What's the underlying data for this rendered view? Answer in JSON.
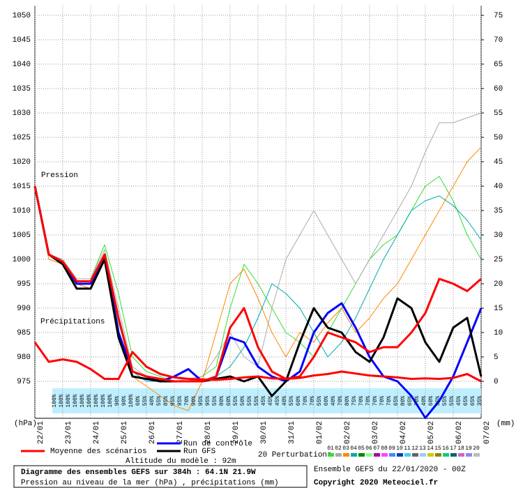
{
  "chart_data": {
    "type": "line",
    "title": "Diagramme des ensembles GEFS sur 384h : 64.1N 21.9W",
    "subtitle": "Pression au niveau de la mer (hPa) , précipitations (mm)",
    "run_info": "Ensemble GEFS du 22/01/2020 - 00Z",
    "copyright": "Copyright 2020 Meteociel.fr",
    "altitude": "Altitude du modèle : 92m",
    "pressure_label": "Pression",
    "precip_label": "Précipitations",
    "y_unit": "(hPa)",
    "y2_unit": "(mm)",
    "grid": true,
    "categories": [
      "22/01",
      null,
      "23/01",
      null,
      "24/01",
      null,
      "25/01",
      null,
      "26/01",
      null,
      "27/01",
      null,
      "28/01",
      null,
      "29/01",
      null,
      "30/01",
      null,
      "31/01",
      null,
      "01/02",
      null,
      "02/02",
      null,
      "03/02",
      null,
      "04/02",
      null,
      "05/02",
      null,
      "06/02",
      null,
      "07/02"
    ],
    "ylim": [
      967.5,
      1050
    ],
    "yticks": [
      975,
      980,
      985,
      990,
      995,
      1000,
      1005,
      1010,
      1015,
      1020,
      1025,
      1030,
      1035,
      1040,
      1045,
      1050
    ],
    "y2lim": [
      -7.5,
      75
    ],
    "y2ticks": [
      0,
      5,
      10,
      15,
      20,
      25,
      30,
      35,
      40,
      45,
      50,
      55,
      60,
      65,
      70,
      75
    ],
    "series": [
      {
        "name": "Moyenne des scénarios",
        "color": "#ff0000",
        "values": [
          1015,
          1001,
          999.5,
          995.5,
          995.5,
          1001,
          988,
          977,
          976,
          975.5,
          975,
          975,
          975,
          976,
          986,
          990,
          982,
          977,
          975.5,
          976,
          980,
          985,
          984,
          983,
          981,
          982,
          982,
          985,
          989,
          996,
          995,
          993.5,
          996
        ]
      },
      {
        "name": "Run de contrôle",
        "color": "#0000ff",
        "values": [
          1015,
          1001,
          999.5,
          995,
          995,
          1001,
          985,
          977,
          976,
          975,
          976,
          977.5,
          975,
          976,
          984,
          983,
          978,
          976,
          975,
          977,
          985,
          989,
          991,
          986,
          980,
          976,
          975,
          972,
          967.5,
          971,
          976,
          983,
          990
        ]
      },
      {
        "name": "Run GFS",
        "color": "#000000",
        "values": [
          1015,
          1001,
          999,
          994,
          994,
          1000,
          984,
          976,
          975.5,
          975,
          975,
          975,
          975,
          975.5,
          976,
          975,
          976,
          972,
          975,
          983,
          990,
          986,
          985,
          981,
          979,
          984,
          992,
          990,
          983,
          979,
          986,
          988,
          976
        ]
      },
      {
        "color": "#ff0000",
        "axis": "y2",
        "values": [
          8,
          4,
          4.5,
          4,
          2.5,
          0.5,
          0.5,
          6,
          3,
          1.5,
          0.8,
          0.5,
          0.4,
          0.3,
          0.5,
          0.8,
          1,
          0.6,
          0.5,
          0.7,
          1.2,
          1.5,
          2,
          1.6,
          1.2,
          1,
          0.8,
          0.5,
          0.6,
          0.5,
          0.7,
          1.5,
          0
        ]
      }
    ],
    "perturbations": [
      {
        "color": "#33dd33",
        "values": [
          1015,
          1001,
          1000,
          996,
          996,
          1003,
          993,
          980,
          977,
          976,
          975,
          975,
          976,
          978,
          990,
          999,
          995,
          990,
          985,
          983,
          980,
          985,
          990,
          995,
          1000,
          1003,
          1005,
          1010,
          1015,
          1017,
          1012,
          1005,
          1000
        ]
      },
      {
        "color": "#aaaaaa",
        "values": [
          1015,
          1001,
          1000,
          996,
          996,
          1002,
          990,
          978,
          976,
          975,
          975,
          975.5,
          976,
          980,
          985,
          980,
          978,
          990,
          1000,
          1005,
          1010,
          1005,
          1000,
          995,
          1000,
          1005,
          1010,
          1015,
          1022,
          1028,
          1028,
          1029,
          1030
        ]
      },
      {
        "color": "#ff8800",
        "values": [
          1015,
          1000,
          999,
          995,
          994,
          1000,
          985,
          976,
          974,
          972,
          970,
          969,
          975,
          985,
          995,
          998,
          992,
          985,
          980,
          985,
          983,
          987,
          990,
          985,
          988,
          992,
          995,
          1000,
          1005,
          1010,
          1015,
          1020,
          1023
        ]
      },
      {
        "color": "#00aaaa",
        "values": [
          1015,
          1001,
          999,
          995,
          995,
          1001,
          987,
          977,
          975,
          975,
          975,
          975,
          975,
          976,
          978,
          982,
          988,
          995,
          993,
          990,
          985,
          980,
          983,
          988,
          994,
          1000,
          1005,
          1010,
          1012,
          1013,
          1011,
          1008,
          1004
        ]
      }
    ],
    "perturbation_legend": {
      "title": "20 Perturbations",
      "items": [
        {
          "label": "01",
          "color": "#33dd33"
        },
        {
          "label": "02",
          "color": "#aaaaaa"
        },
        {
          "label": "03",
          "color": "#ff8800"
        },
        {
          "label": "04",
          "color": "#00aaaa"
        },
        {
          "label": "05",
          "color": "#008800"
        },
        {
          "label": "06",
          "color": "#88ff88"
        },
        {
          "label": "07",
          "color": "#aa00aa"
        },
        {
          "label": "08",
          "color": "#ff44ff"
        },
        {
          "label": "09",
          "color": "#4488ff"
        },
        {
          "label": "10",
          "color": "#0044aa"
        },
        {
          "label": "11",
          "color": "#44ccff"
        },
        {
          "label": "12",
          "color": "#666666"
        },
        {
          "label": "13",
          "color": "#99ccff"
        },
        {
          "label": "14",
          "color": "#cccc00"
        },
        {
          "label": "15",
          "color": "#888800"
        },
        {
          "label": "16",
          "color": "#00cc88"
        },
        {
          "label": "17",
          "color": "#006666"
        },
        {
          "label": "18",
          "color": "#cc66cc"
        },
        {
          "label": "19",
          "color": "#8888ff"
        },
        {
          "label": "20",
          "color": "#bbbbbb"
        }
      ]
    },
    "precip_probability": [
      "100%",
      "100%",
      "100%",
      "100%",
      "100%",
      "100%",
      "100%",
      "100%",
      "100%",
      "90%",
      "90%",
      "100%",
      "60%",
      "55%",
      "40%",
      "55%",
      "85%",
      "95%",
      "95%",
      "70%",
      "90%",
      "95%",
      "95%",
      "55%",
      "80%",
      "60%",
      "55%",
      "50%",
      "55%",
      "55%",
      "45%",
      "45%",
      "45%",
      "40%",
      "55%",
      "60%",
      "70%",
      "70%",
      "55%",
      "60%",
      "40%",
      "70%",
      "80%",
      "75%",
      "70%",
      "70%",
      "70%",
      "70%",
      "70%",
      "65%",
      "80%",
      "65%",
      "70%",
      "40%",
      "60%",
      "55%",
      "55%",
      "55%",
      "45%",
      "65%",
      "65%",
      "35%"
    ]
  }
}
